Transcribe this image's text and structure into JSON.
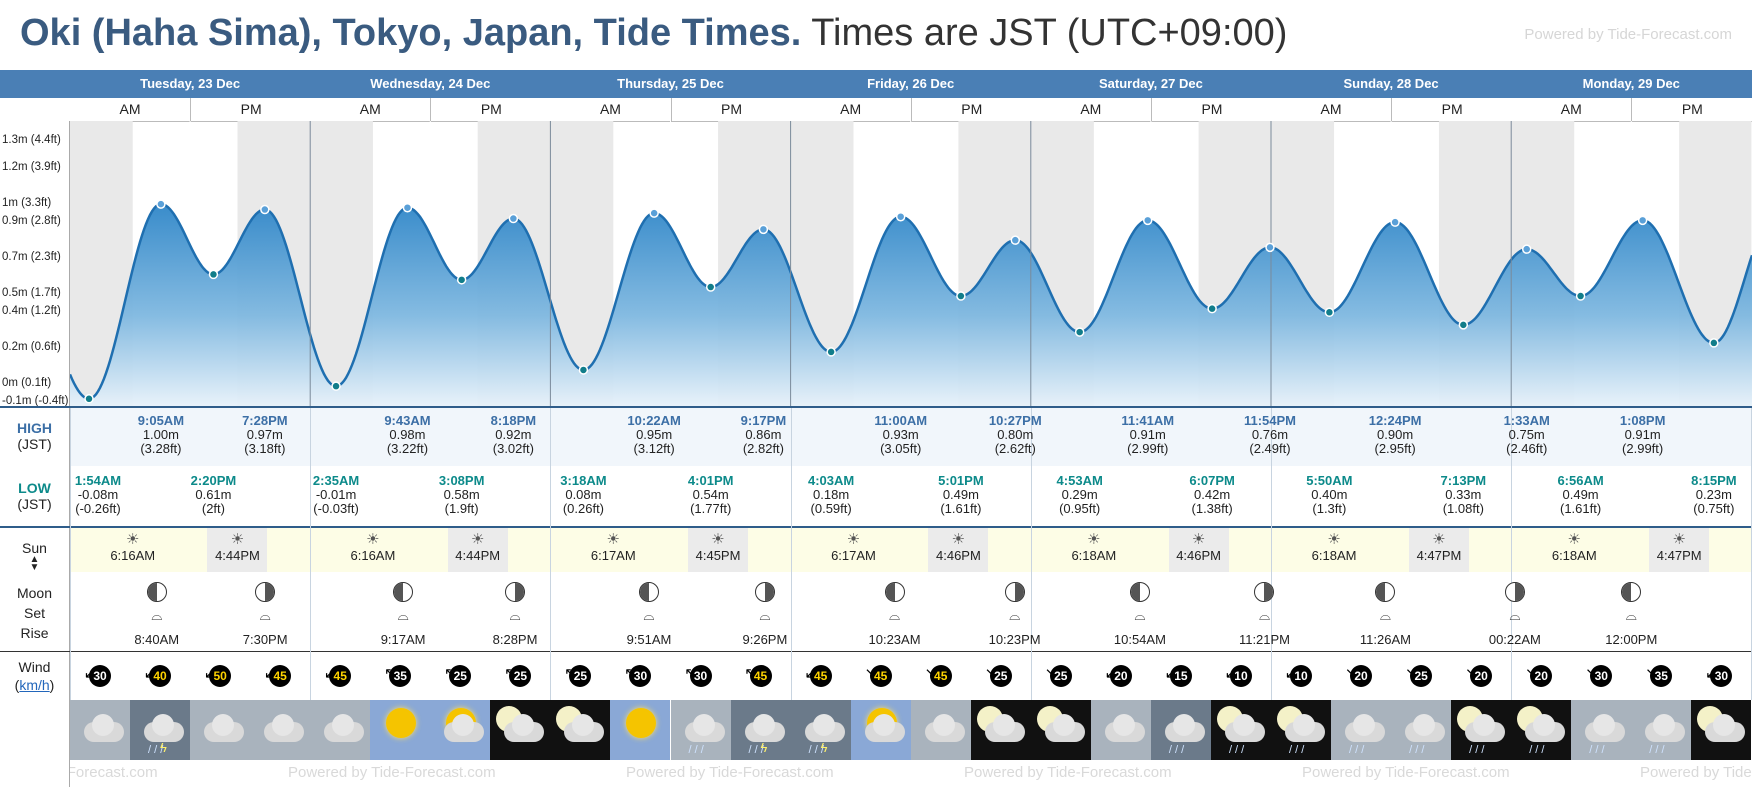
{
  "header": {
    "title": "Oki (Haha Sima), Tokyo, Japan, Tide Times.",
    "subtitle": "Times are JST (UTC+09:00)",
    "powered": "Powered by Tide-Forecast.com"
  },
  "days": [
    "Tuesday, 23 Dec",
    "Wednesday, 24 Dec",
    "Thursday, 25 Dec",
    "Friday, 26 Dec",
    "Saturday, 27 Dec",
    "Sunday, 28 Dec",
    "Monday, 29 Dec"
  ],
  "ampm": {
    "am": "AM",
    "pm": "PM"
  },
  "labels": {
    "high": "HIGH",
    "high_tz": "(JST)",
    "low": "LOW",
    "low_tz": "(JST)",
    "sun": "Sun",
    "moon": "Moon",
    "set": "Set",
    "rise": "Rise",
    "wind": "Wind",
    "wind_unit": "km/h"
  },
  "chart_data": {
    "type": "area",
    "yticks": [
      "-0.1m (-0.4ft)",
      "0m (0.1ft)",
      "0.2m (0.6ft)",
      "0.4m (1.2ft)",
      "0.5m (1.7ft)",
      "0.7m (2.3ft)",
      "0.9m (2.8ft)",
      "1m (3.3ft)",
      "1.2m (3.9ft)",
      "1.3m (4.4ft)"
    ],
    "ylim": [
      -0.12,
      1.45
    ],
    "x_unit": "hours from Tue 23 Dec 00:00",
    "extremes": [
      {
        "t": "Tue 1:54AM",
        "h": -0.08,
        "kind": "low"
      },
      {
        "t": "Tue 9:05AM",
        "h": 1.0,
        "kind": "high"
      },
      {
        "t": "Tue 2:20PM",
        "h": 0.61,
        "kind": "low"
      },
      {
        "t": "Tue 7:28PM",
        "h": 0.97,
        "kind": "high"
      },
      {
        "t": "Wed 2:35AM",
        "h": -0.01,
        "kind": "low"
      },
      {
        "t": "Wed 9:43AM",
        "h": 0.98,
        "kind": "high"
      },
      {
        "t": "Wed 3:08PM",
        "h": 0.58,
        "kind": "low"
      },
      {
        "t": "Wed 8:18PM",
        "h": 0.92,
        "kind": "high"
      },
      {
        "t": "Thu 3:18AM",
        "h": 0.08,
        "kind": "low"
      },
      {
        "t": "Thu 10:22AM",
        "h": 0.95,
        "kind": "high"
      },
      {
        "t": "Thu 4:01PM",
        "h": 0.54,
        "kind": "low"
      },
      {
        "t": "Thu 9:17PM",
        "h": 0.86,
        "kind": "high"
      },
      {
        "t": "Fri 4:03AM",
        "h": 0.18,
        "kind": "low"
      },
      {
        "t": "Fri 11:00AM",
        "h": 0.93,
        "kind": "high"
      },
      {
        "t": "Fri 5:01PM",
        "h": 0.49,
        "kind": "low"
      },
      {
        "t": "Fri 10:27PM",
        "h": 0.8,
        "kind": "high"
      },
      {
        "t": "Sat 4:53AM",
        "h": 0.29,
        "kind": "low"
      },
      {
        "t": "Sat 11:41AM",
        "h": 0.91,
        "kind": "high"
      },
      {
        "t": "Sat 6:07PM",
        "h": 0.42,
        "kind": "low"
      },
      {
        "t": "Sat 11:54PM",
        "h": 0.76,
        "kind": "high"
      },
      {
        "t": "Sun 5:50AM",
        "h": 0.4,
        "kind": "low"
      },
      {
        "t": "Sun 12:24PM",
        "h": 0.9,
        "kind": "high"
      },
      {
        "t": "Sun 7:13PM",
        "h": 0.33,
        "kind": "low"
      },
      {
        "t": "Mon 1:33AM",
        "h": 0.75,
        "kind": "high"
      },
      {
        "t": "Mon 6:56AM",
        "h": 0.49,
        "kind": "low"
      },
      {
        "t": "Mon 1:08PM",
        "h": 0.91,
        "kind": "high"
      },
      {
        "t": "Mon 8:15PM",
        "h": 0.23,
        "kind": "low"
      }
    ]
  },
  "highs": [
    {
      "time": "9:05AM",
      "m": "1.00m",
      "ft": "(3.28ft)"
    },
    {
      "time": "7:28PM",
      "m": "0.97m",
      "ft": "(3.18ft)"
    },
    {
      "time": "9:43AM",
      "m": "0.98m",
      "ft": "(3.22ft)"
    },
    {
      "time": "8:18PM",
      "m": "0.92m",
      "ft": "(3.02ft)"
    },
    {
      "time": "10:22AM",
      "m": "0.95m",
      "ft": "(3.12ft)"
    },
    {
      "time": "9:17PM",
      "m": "0.86m",
      "ft": "(2.82ft)"
    },
    {
      "time": "11:00AM",
      "m": "0.93m",
      "ft": "(3.05ft)"
    },
    {
      "time": "10:27PM",
      "m": "0.80m",
      "ft": "(2.62ft)"
    },
    {
      "time": "11:41AM",
      "m": "0.91m",
      "ft": "(2.99ft)"
    },
    {
      "time": "11:54PM",
      "m": "0.76m",
      "ft": "(2.49ft)"
    },
    {
      "time": "12:24PM",
      "m": "0.90m",
      "ft": "(2.95ft)"
    },
    {
      "time": "1:33AM",
      "m": "0.75m",
      "ft": "(2.46ft)"
    },
    {
      "time": "1:08PM",
      "m": "0.91m",
      "ft": "(2.99ft)"
    }
  ],
  "lows": [
    {
      "time": "1:54AM",
      "m": "-0.08m",
      "ft": "(-0.26ft)"
    },
    {
      "time": "2:20PM",
      "m": "0.61m",
      "ft": "(2ft)"
    },
    {
      "time": "2:35AM",
      "m": "-0.01m",
      "ft": "(-0.03ft)"
    },
    {
      "time": "3:08PM",
      "m": "0.58m",
      "ft": "(1.9ft)"
    },
    {
      "time": "3:18AM",
      "m": "0.08m",
      "ft": "(0.26ft)"
    },
    {
      "time": "4:01PM",
      "m": "0.54m",
      "ft": "(1.77ft)"
    },
    {
      "time": "4:03AM",
      "m": "0.18m",
      "ft": "(0.59ft)"
    },
    {
      "time": "5:01PM",
      "m": "0.49m",
      "ft": "(1.61ft)"
    },
    {
      "time": "4:53AM",
      "m": "0.29m",
      "ft": "(0.95ft)"
    },
    {
      "time": "6:07PM",
      "m": "0.42m",
      "ft": "(1.38ft)"
    },
    {
      "time": "5:50AM",
      "m": "0.40m",
      "ft": "(1.3ft)"
    },
    {
      "time": "7:13PM",
      "m": "0.33m",
      "ft": "(1.08ft)"
    },
    {
      "time": "6:56AM",
      "m": "0.49m",
      "ft": "(1.61ft)"
    },
    {
      "time": "8:15PM",
      "m": "0.23m",
      "ft": "(0.75ft)"
    }
  ],
  "sun": [
    {
      "rise": "6:16AM",
      "set": "4:44PM"
    },
    {
      "rise": "6:16AM",
      "set": "4:44PM"
    },
    {
      "rise": "6:17AM",
      "set": "4:45PM"
    },
    {
      "rise": "6:17AM",
      "set": "4:46PM"
    },
    {
      "rise": "6:18AM",
      "set": "4:46PM"
    },
    {
      "rise": "6:18AM",
      "set": "4:47PM"
    },
    {
      "rise": "6:18AM",
      "set": "4:47PM"
    }
  ],
  "moon": [
    {
      "time": "8:40AM",
      "kind": "rise"
    },
    {
      "time": "7:30PM",
      "kind": "set"
    },
    {
      "time": "9:17AM",
      "kind": "rise"
    },
    {
      "time": "8:28PM",
      "kind": "set"
    },
    {
      "time": "9:51AM",
      "kind": "rise"
    },
    {
      "time": "9:26PM",
      "kind": "set"
    },
    {
      "time": "10:23AM",
      "kind": "rise"
    },
    {
      "time": "10:23PM",
      "kind": "set"
    },
    {
      "time": "10:54AM",
      "kind": "rise"
    },
    {
      "time": "11:21PM",
      "kind": "set"
    },
    {
      "time": "11:26AM",
      "kind": "rise"
    },
    {
      "time": "00:22AM",
      "kind": "set"
    },
    {
      "time": "12:00PM",
      "kind": "rise"
    }
  ],
  "wind": [
    "30",
    "40",
    "50",
    "45",
    "45",
    "35",
    "25",
    "25",
    "25",
    "30",
    "30",
    "45",
    "45",
    "45",
    "45",
    "25",
    "25",
    "20",
    "15",
    "10",
    "10",
    "20",
    "25",
    "20",
    "20",
    "30",
    "35",
    "30"
  ],
  "weather_icons": [
    "cloudy",
    "thunder-cloud",
    "cloudy",
    "cloudy",
    "cloudy",
    "sunny",
    "partly-sunny",
    "moon-cloud",
    "moon-cloud",
    "sunny",
    "partly-rain",
    "thunder-rain",
    "thunder-rain",
    "partly-sunny",
    "cloudy",
    "moon-cloud",
    "moon-cloud",
    "cloudy",
    "rain-cloud",
    "moon-rain",
    "moon-rain",
    "partly-rain",
    "partly-rain",
    "moon-rain",
    "moon-rain",
    "partly-rain",
    "partly-rain",
    "moon-cloud"
  ],
  "footer": {
    "repeat": "Powered by Tide-Forecast.com"
  }
}
